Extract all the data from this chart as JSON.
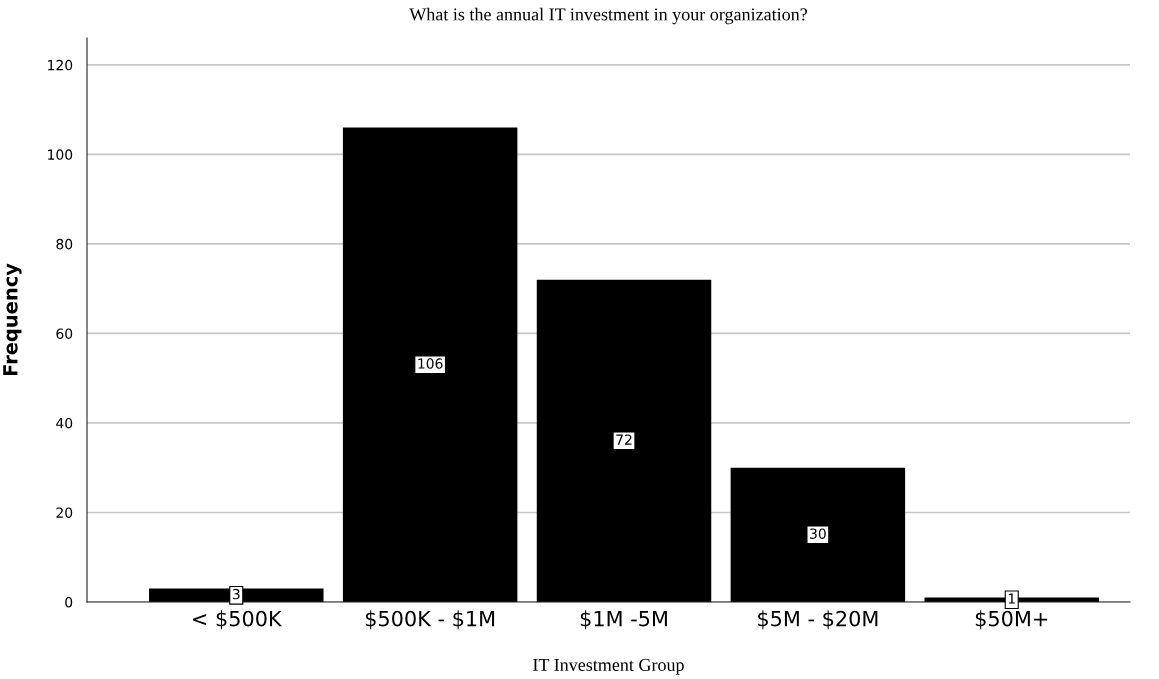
{
  "chart_data": {
    "type": "bar",
    "title": "What is the annual IT investment in your organization?",
    "xlabel": "IT Investment Group",
    "ylabel": "Frequency",
    "categories": [
      "< $500K",
      "$500K - $1M",
      "$1M -5M",
      "$5M - $20M",
      "$50M+"
    ],
    "values": [
      3,
      106,
      72,
      30,
      1
    ],
    "color": "#000000",
    "ylim": [
      0,
      126
    ],
    "yticks": [
      0,
      20,
      40,
      60,
      80,
      100,
      120
    ],
    "grid": "y",
    "data_labels": true
  }
}
